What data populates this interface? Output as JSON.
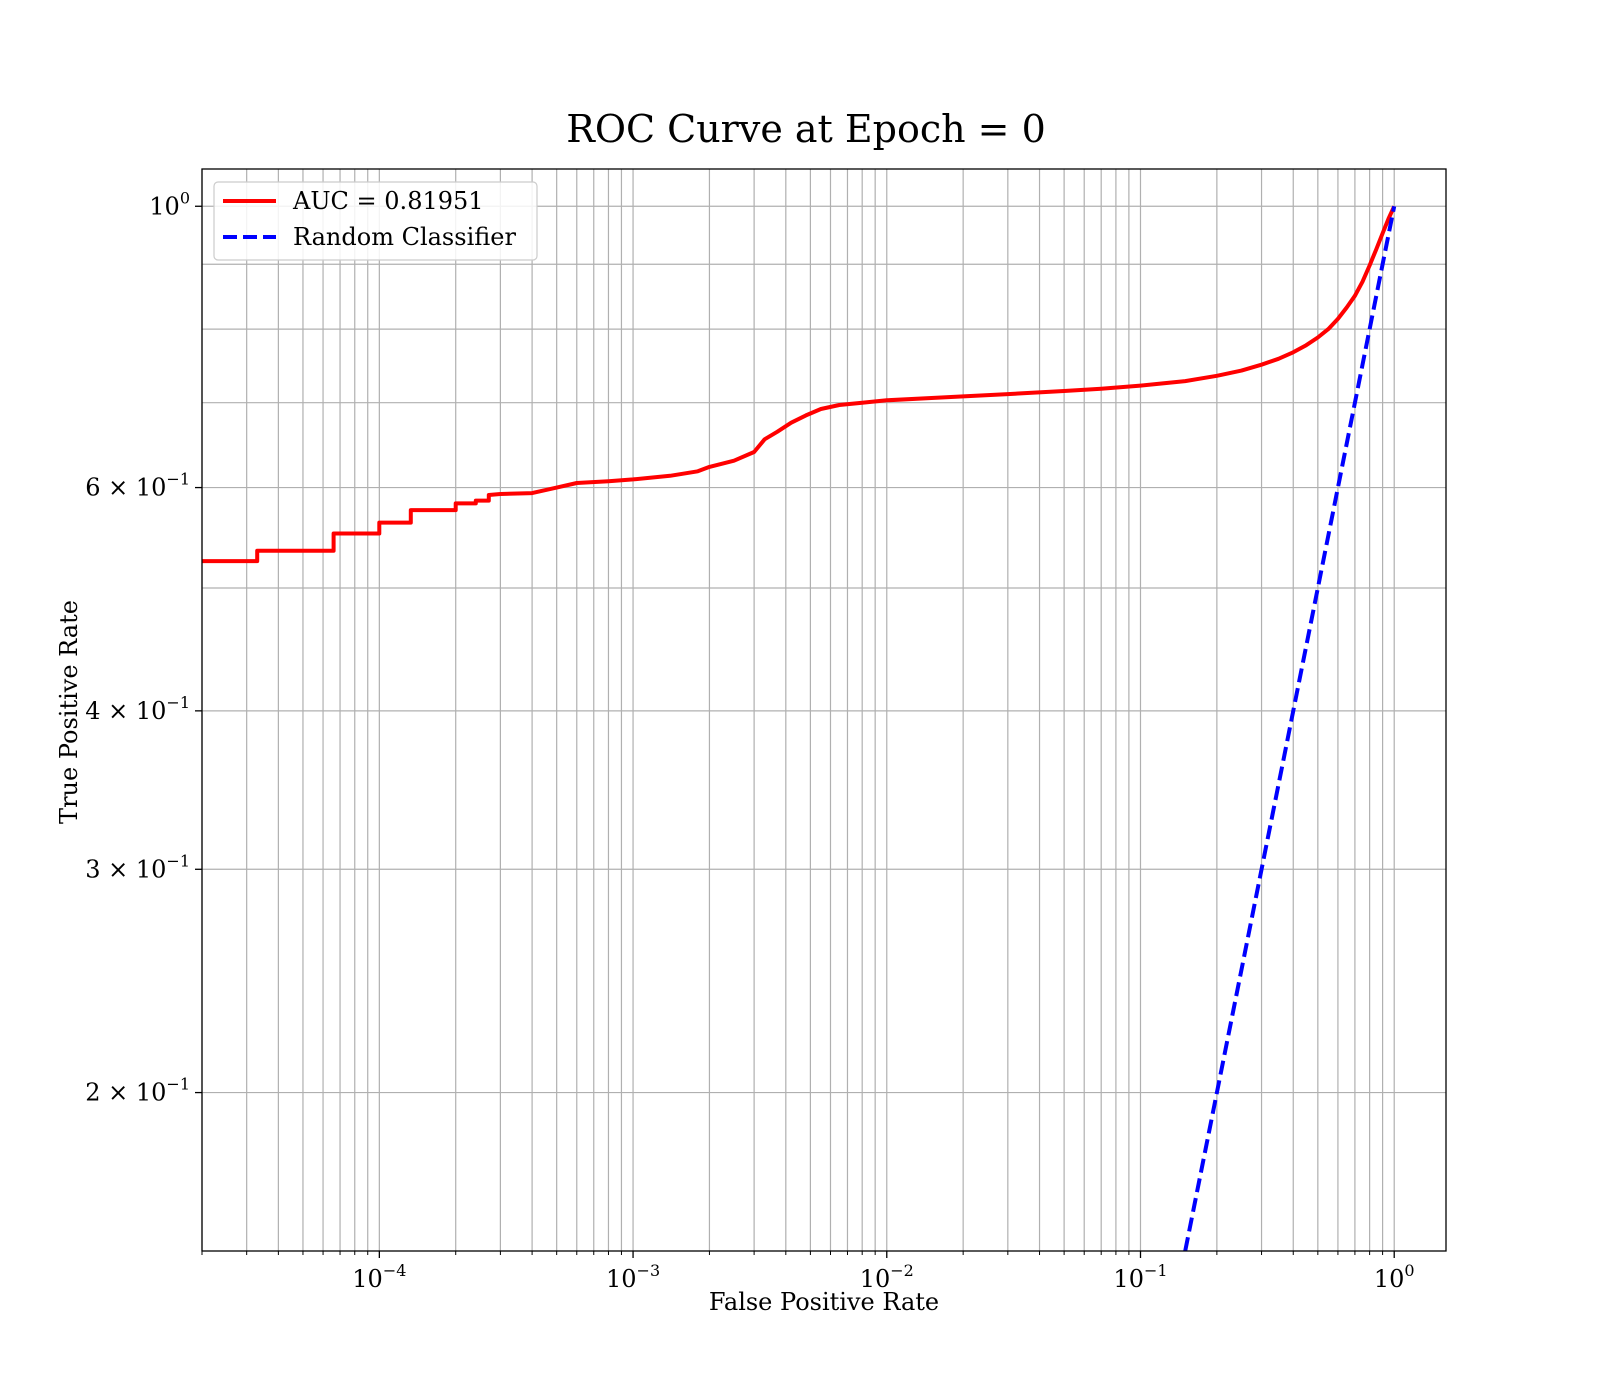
{
  "chart_data": {
    "type": "line",
    "title": "ROC Curve at Epoch = 0",
    "xlabel": "False Positive Rate",
    "ylabel": "True Positive Rate",
    "xscale": "log",
    "yscale": "log",
    "xlim": [
      2e-05,
      1.6
    ],
    "ylim": [
      0.15,
      1.07
    ],
    "grid": "both",
    "legend_position": "upper-left",
    "x_ticks": [
      {
        "value": 0.0001,
        "base": "10",
        "exp": "−4"
      },
      {
        "value": 0.001,
        "base": "10",
        "exp": "−3"
      },
      {
        "value": 0.01,
        "base": "10",
        "exp": "−2"
      },
      {
        "value": 0.1,
        "base": "10",
        "exp": "−1"
      },
      {
        "value": 1,
        "base": "10",
        "exp": "0"
      }
    ],
    "y_ticks": [
      {
        "value": 1.0,
        "base": "10",
        "exp": "0"
      },
      {
        "value": 0.6,
        "base": "6 × 10",
        "exp": "−1"
      },
      {
        "value": 0.4,
        "base": "4 × 10",
        "exp": "−1"
      },
      {
        "value": 0.3,
        "base": "3 × 10",
        "exp": "−1"
      },
      {
        "value": 0.2,
        "base": "2 × 10",
        "exp": "−1"
      }
    ],
    "series": [
      {
        "name": "AUC = 0.81951",
        "color": "#ff0000",
        "style": "solid",
        "points": [
          [
            2e-05,
            0.525
          ],
          [
            3.3e-05,
            0.525
          ],
          [
            3.3e-05,
            0.535
          ],
          [
            6.6e-05,
            0.535
          ],
          [
            6.6e-05,
            0.552
          ],
          [
            0.0001,
            0.552
          ],
          [
            0.0001,
            0.563
          ],
          [
            0.000133,
            0.563
          ],
          [
            0.000133,
            0.576
          ],
          [
            0.0002,
            0.576
          ],
          [
            0.0002,
            0.583
          ],
          [
            0.00024,
            0.583
          ],
          [
            0.00024,
            0.586
          ],
          [
            0.00027,
            0.586
          ],
          [
            0.00027,
            0.592
          ],
          [
            0.0003,
            0.593
          ],
          [
            0.0004,
            0.594
          ],
          [
            0.0005,
            0.6
          ],
          [
            0.0006,
            0.605
          ],
          [
            0.0008,
            0.607
          ],
          [
            0.001,
            0.609
          ],
          [
            0.0014,
            0.613
          ],
          [
            0.0018,
            0.618
          ],
          [
            0.002,
            0.623
          ],
          [
            0.0025,
            0.63
          ],
          [
            0.003,
            0.64
          ],
          [
            0.0033,
            0.655
          ],
          [
            0.0037,
            0.664
          ],
          [
            0.0042,
            0.675
          ],
          [
            0.0048,
            0.684
          ],
          [
            0.0055,
            0.692
          ],
          [
            0.0065,
            0.697
          ],
          [
            0.008,
            0.7
          ],
          [
            0.01,
            0.703
          ],
          [
            0.015,
            0.706
          ],
          [
            0.02,
            0.708
          ],
          [
            0.03,
            0.711
          ],
          [
            0.05,
            0.715
          ],
          [
            0.07,
            0.718
          ],
          [
            0.1,
            0.722
          ],
          [
            0.15,
            0.728
          ],
          [
            0.2,
            0.735
          ],
          [
            0.25,
            0.742
          ],
          [
            0.3,
            0.75
          ],
          [
            0.35,
            0.758
          ],
          [
            0.4,
            0.767
          ],
          [
            0.45,
            0.777
          ],
          [
            0.5,
            0.788
          ],
          [
            0.55,
            0.8
          ],
          [
            0.6,
            0.815
          ],
          [
            0.65,
            0.832
          ],
          [
            0.7,
            0.85
          ],
          [
            0.75,
            0.872
          ],
          [
            0.8,
            0.898
          ],
          [
            0.85,
            0.925
          ],
          [
            0.9,
            0.952
          ],
          [
            0.95,
            0.978
          ],
          [
            1.0,
            1.0
          ]
        ]
      },
      {
        "name": "Random Classifier",
        "color": "#0000ff",
        "style": "dashed",
        "points": [
          [
            0.15,
            0.15
          ],
          [
            1.0,
            1.0
          ]
        ]
      }
    ]
  }
}
